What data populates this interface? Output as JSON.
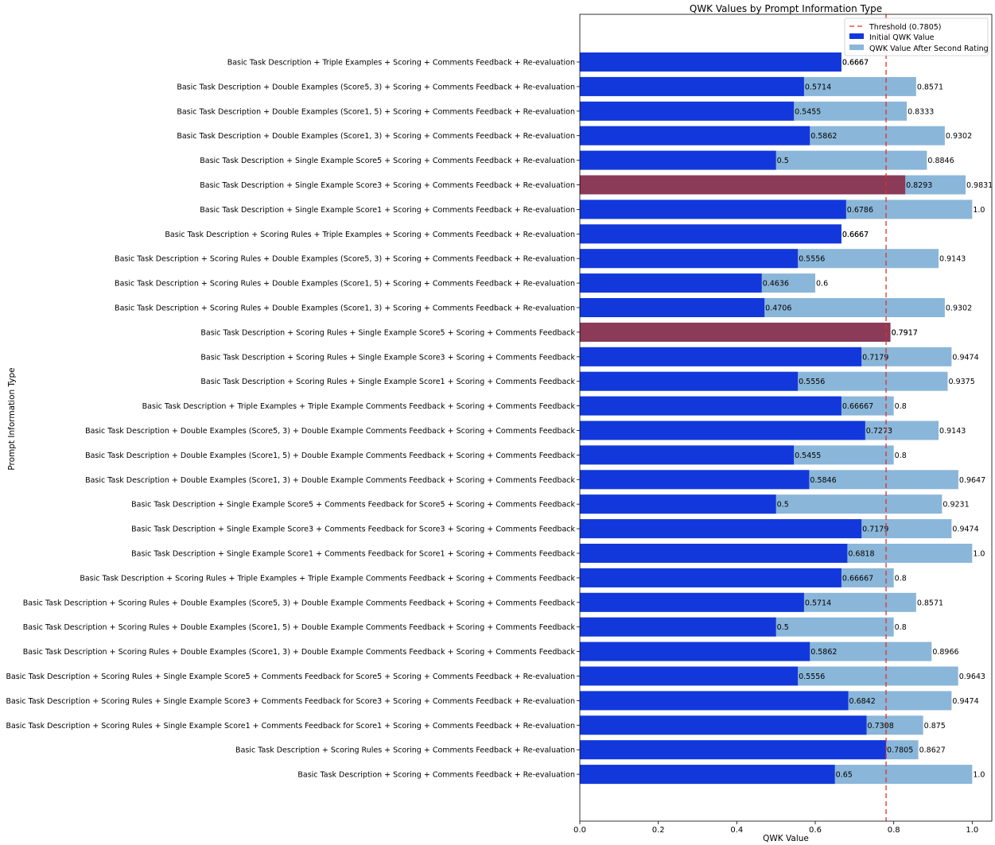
{
  "chart_data": {
    "type": "bar",
    "orientation": "horizontal",
    "title": "QWK Values by Prompt Information Type",
    "xlabel": "QWK Value",
    "ylabel": "Prompt Information Type",
    "xlim": [
      0,
      1.05
    ],
    "xticks": [
      "0.0",
      "0.2",
      "0.4",
      "0.6",
      "0.8",
      "1.0"
    ],
    "xtick_values": [
      0,
      0.2,
      0.4,
      0.6,
      0.8,
      1.0
    ],
    "grid": false,
    "legend_position": "top-right",
    "threshold": {
      "value": 0.7805,
      "label": "Threshold (0.7805)",
      "color": "#e0302a"
    },
    "colors": {
      "initial": "#1238dc",
      "after": "#8ab6d9",
      "highlight": "#8b3a58"
    },
    "series": [
      {
        "name": "Initial QWK Value",
        "key": "initial"
      },
      {
        "name": "QWK Value After Second Rating",
        "key": "after"
      }
    ],
    "categories": [
      "Basic Task Description + Triple Examples + Scoring + Comments Feedback + Re-evaluation",
      "Basic Task Description + Double Examples (Score5, 3) + Scoring + Comments Feedback + Re-evaluation",
      "Basic Task Description + Double Examples (Score1, 5) + Scoring + Comments Feedback + Re-evaluation",
      "Basic Task Description + Double Examples (Score1, 3) + Scoring + Comments Feedback + Re-evaluation",
      "Basic Task Description + Single Example Score5 + Scoring + Comments Feedback + Re-evaluation",
      "Basic Task Description + Single Example Score3 + Scoring + Comments Feedback + Re-evaluation",
      "Basic Task Description + Single Example Score1 + Scoring + Comments Feedback + Re-evaluation",
      "Basic Task Description + Scoring Rules + Triple Examples + Scoring + Comments Feedback + Re-evaluation",
      "Basic Task Description + Scoring Rules + Double Examples (Score5, 3) + Scoring + Comments Feedback + Re-evaluation",
      "Basic Task Description + Scoring Rules + Double Examples (Score1, 5) + Scoring + Comments Feedback + Re-evaluation",
      "Basic Task Description + Scoring Rules + Double Examples (Score1, 3) + Scoring + Comments Feedback + Re-evaluation",
      "Basic Task Description + Scoring Rules + Single Example Score5 + Scoring + Comments Feedback",
      "Basic Task Description + Scoring Rules + Single Example Score3 + Scoring + Comments Feedback",
      "Basic Task Description + Scoring Rules + Single Example Score1 + Scoring + Comments Feedback",
      "Basic Task Description + Triple Examples + Triple Example Comments Feedback + Scoring + Comments Feedback",
      "Basic Task Description + Double Examples (Score5, 3) + Double Example Comments Feedback + Scoring + Comments Feedback",
      "Basic Task Description + Double Examples (Score1, 5) + Double Example Comments Feedback + Scoring + Comments Feedback",
      "Basic Task Description + Double Examples (Score1, 3) + Double Example Comments Feedback + Scoring + Comments Feedback",
      "Basic Task Description + Single Example Score5 + Comments Feedback for Score5 + Scoring + Comments Feedback",
      "Basic Task Description + Single Example Score3 + Comments Feedback for Score3 + Scoring + Comments Feedback",
      "Basic Task Description + Single Example Score1 + Comments Feedback for Score1 + Scoring + Comments Feedback",
      "Basic Task Description + Scoring Rules + Triple Examples + Triple Example Comments Feedback + Scoring + Comments Feedback",
      "Basic Task Description + Scoring Rules + Double Examples (Score5, 3) + Double Example Comments Feedback + Scoring + Comments Feedback",
      "Basic Task Description + Scoring Rules + Double Examples (Score1, 5) + Double Example Comments Feedback + Scoring + Comments Feedback",
      "Basic Task Description + Scoring Rules + Double Examples (Score1, 3) + Double Example Comments Feedback + Scoring + Comments Feedback",
      "Basic Task Description + Scoring Rules + Single Example Score5 + Comments Feedback for Score5 + Scoring + Comments Feedback + Re-evaluation",
      "Basic Task Description + Scoring Rules + Single Example Score3 + Comments Feedback for Score3 + Scoring + Comments Feedback + Re-evaluation",
      "Basic Task Description + Scoring Rules + Single Example Score1 + Comments Feedback for Score1 + Scoring + Comments Feedback + Re-evaluation",
      "Basic Task Description + Scoring Rules + Scoring + Comments Feedback + Re-evaluation",
      "Basic Task Description + Scoring + Comments Feedback + Re-evaluation"
    ],
    "initial": [
      0.6667,
      0.5714,
      0.5455,
      0.5862,
      0.5,
      0.8293,
      0.6786,
      0.6667,
      0.5556,
      0.4636,
      0.4706,
      0.7917,
      0.7179,
      0.5556,
      0.66667,
      0.7273,
      0.5455,
      0.5846,
      0.5,
      0.7179,
      0.6818,
      0.66667,
      0.5714,
      0.5,
      0.5862,
      0.5556,
      0.6842,
      0.7308,
      0.7805,
      0.65
    ],
    "initial_labels": [
      "0.6667",
      "0.5714",
      "0.5455",
      "0.5862",
      "0.5",
      "0.8293",
      "0.6786",
      "0.6667",
      "0.5556",
      "0.4636",
      "0.4706",
      "0.7917",
      "0.7179",
      "0.5556",
      "0.66667",
      "0.7273",
      "0.5455",
      "0.5846",
      "0.5",
      "0.7179",
      "0.6818",
      "0.66667",
      "0.5714",
      "0.5",
      "0.5862",
      "0.5556",
      "0.6842",
      "0.7308",
      "0.7805",
      "0.65"
    ],
    "after": [
      0.6667,
      0.8571,
      0.8333,
      0.9302,
      0.8846,
      0.9831,
      1.0,
      0.6667,
      0.9143,
      0.6,
      0.9302,
      0.7917,
      0.9474,
      0.9375,
      0.8,
      0.9143,
      0.8,
      0.9647,
      0.9231,
      0.9474,
      1.0,
      0.8,
      0.8571,
      0.8,
      0.8966,
      0.9643,
      0.9474,
      0.875,
      0.8627,
      1.0
    ],
    "after_labels": [
      "0.6667",
      "0.8571",
      "0.8333",
      "0.9302",
      "0.8846",
      "0.9831",
      "1.0",
      "0.6667",
      "0.9143",
      "0.6",
      "0.9302",
      "0.7917",
      "0.9474",
      "0.9375",
      "0.8",
      "0.9143",
      "0.8",
      "0.9647",
      "0.9231",
      "0.9474",
      "1.0",
      "0.8",
      "0.8571",
      "0.8",
      "0.8966",
      "0.9643",
      "0.9474",
      "0.875",
      "0.8627",
      "1.0"
    ],
    "highlighted_indices": [
      5,
      11
    ]
  }
}
